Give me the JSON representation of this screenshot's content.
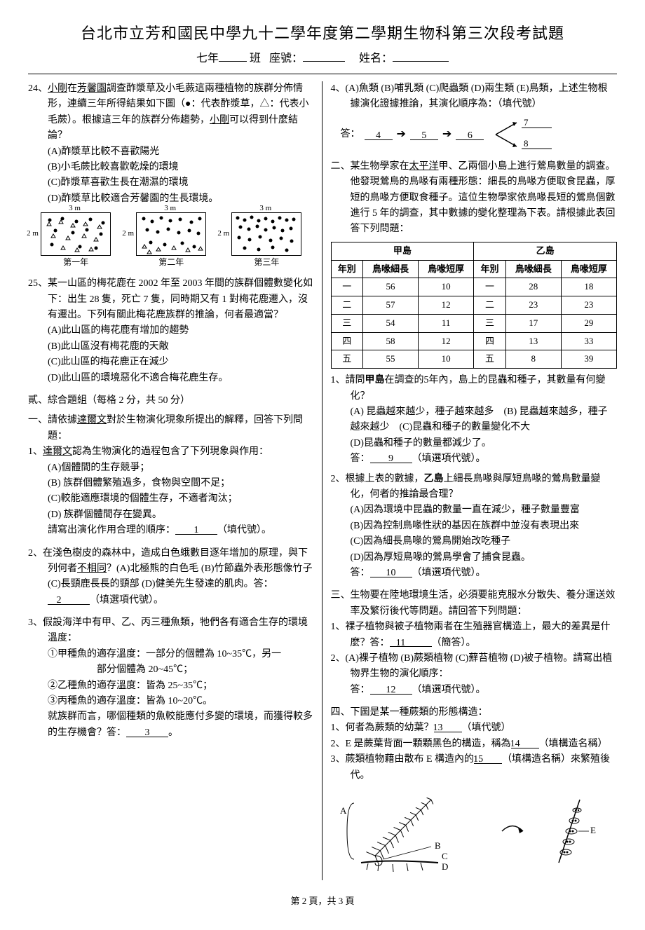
{
  "header": {
    "title": "台北市立芳和國民中學九十二學年度第二學期生物科第三次段考試題",
    "grade": "七年",
    "class_label": "班",
    "seat_label": "座號：",
    "name_label": "姓名："
  },
  "left": {
    "q24": {
      "num": "24、",
      "text": "小剛在芳馨園調查酢漿草及小毛蕨這兩種植物的族群分佈情形，連續三年所得結果如下圖（●：代表酢漿草，△：代表小毛蕨）。根據這三年的族群分佈趨勢，小剛可以得到什麼結論？",
      "underline1": "小剛",
      "underline2": "芳馨園",
      "underline3": "小剛",
      "optA": "(A)酢漿草比較不喜歡陽光",
      "optB": "(B)小毛蕨比較喜歡乾燥的環境",
      "optC": "(C)酢漿草喜歡生長在潮濕的環境",
      "optD": "(D)酢漿草比較適合芳馨園的生長環境。",
      "plot_dim_h": "3 m",
      "plot_dim_v": "2 m",
      "year1": "第一年",
      "year2": "第二年",
      "year3": "第三年"
    },
    "q25": {
      "num": "25、",
      "text": "某一山區的梅花鹿在 2002 年至 2003 年間的族群個體數變化如下：出生 28 隻，死亡 7 隻，同時期又有 1 對梅花鹿遷入，沒有遷出。下列有關此梅花鹿族群的推論，何者最適當？",
      "optA": "(A)此山區的梅花鹿有增加的趨勢",
      "optB": "(B)此山區沒有梅花鹿的天敵",
      "optC": "(C)此山區的梅花鹿正在減少",
      "optD": "(D)此山區的環境惡化不適合梅花鹿生存。"
    },
    "section2": {
      "head": "貳、綜合題組（每格 2 分，共 50 分）",
      "intro_num": "一、",
      "intro": "請依據達爾文對於生物演化現象所提出的解釋，回答下列問題：",
      "underline_darwin": "達爾文",
      "q1": {
        "num": "1、",
        "text": "達爾文認為生物演化的過程包含了下列現象與作用：",
        "underline": "達爾文",
        "optA": "(A)個體間的生存競爭；",
        "optB": "(B) 族群個體繁殖過多，食物與空間不足；",
        "optC": "(C)較能適應環境的個體生存，不適者淘汰；",
        "optD": "(D) 族群個體間存在變異。",
        "tail": "請寫出演化作用合理的順序：",
        "blank": "1",
        "tail2": "（填代號）。"
      },
      "q2": {
        "num": "2、",
        "text_a": "在淺色樹皮的森林中，造成白色蛾數目逐年增加的原理，與下列何者",
        "underline_not": "不相同",
        "text_b": "？(A)北極熊的白色毛 (B)竹節蟲外表形態像竹子 (C)長頸鹿長長的頸部 (D)健美先生發達的肌肉。答：",
        "blank": "2",
        "tail": "（填選項代號）。"
      },
      "q3": {
        "num": "3、",
        "text": "假設海洋中有甲、乙、丙三種魚類，牠們各有適合生存的環境溫度：",
        "line1_a": "①甲種魚的適存溫度：一部分的個體為 10~35℃，另一",
        "line1_b": "部分個體為 20~45℃；",
        "line2": "②乙種魚的適存溫度：皆為 25~35℃；",
        "line3": "③丙種魚的適存溫度：皆為 10~20℃。",
        "tail_a": "就族群而言，哪個種類的魚較能應付多變的環境，而獲得較多的生存機會？答：",
        "blank": "3",
        "tail_b": "。"
      }
    }
  },
  "right": {
    "q4": {
      "num": "4、",
      "text": "(A)魚類 (B)哺乳類 (C)爬蟲類 (D)兩生類 (E)鳥類，上述生物根據演化證據推論，其演化順序為：（填代號）",
      "ans_label": "答：",
      "seq": [
        "4",
        "5",
        "6"
      ],
      "end7": "7",
      "end8": "8"
    },
    "section_bird": {
      "num": "二、",
      "text": "某生物學家在太平洋甲、乙兩個小島上進行鶯鳥數量的調查。他發現鶯鳥的鳥喙有兩種形態：細長的鳥喙方便取食昆蟲，厚短的鳥喙方便取食種子。這位生物學家依鳥喙長短的鶯鳥個數進行 5 年的調查，其中數據的變化整理為下表。請根據此表回答下列問題：",
      "underline_pacific": "太平洋",
      "table": {
        "island_a": "甲島",
        "island_b": "乙島",
        "year_col": "年別",
        "beak_long": "鳥喙細長",
        "beak_short": "鳥喙短厚",
        "rows": [
          {
            "y": "一",
            "a1": "56",
            "a2": "10",
            "b1": "28",
            "b2": "18"
          },
          {
            "y": "二",
            "a1": "57",
            "a2": "12",
            "b1": "23",
            "b2": "23"
          },
          {
            "y": "三",
            "a1": "54",
            "a2": "11",
            "b1": "17",
            "b2": "29"
          },
          {
            "y": "四",
            "a1": "58",
            "a2": "12",
            "b1": "13",
            "b2": "33"
          },
          {
            "y": "五",
            "a1": "55",
            "a2": "10",
            "b1": "8",
            "b2": "39"
          }
        ]
      },
      "q1": {
        "num": "1、",
        "text": "請問甲島在調查的5年內，島上的昆蟲和種子，其數量有何變化？",
        "bold": "甲島",
        "optA": "(A) 昆蟲越來越少，種子越來越多",
        "optB": "(B) 昆蟲越來越多，種子越來越少",
        "optC": "(C)昆蟲和種子的數量變化不大",
        "optD": "(D)昆蟲和種子的數量都減少了。",
        "ans": "答：",
        "blank": "9",
        "tail": "（填選項代號）。"
      },
      "q2": {
        "num": "2、",
        "text": "根據上表的數據，乙島上細長鳥喙與厚短鳥喙的鶯鳥數量變化，何者的推論最合理？",
        "bold": "乙島",
        "optA": "(A)因為環境中昆蟲的數量一直在減少，種子數量豐富",
        "optB": "(B)因為控制鳥喙性狀的基因在族群中並沒有表現出來",
        "optC": "(C)因為細長鳥喙的鶯鳥開始改吃種子",
        "optD": "(D)因為厚短鳥喙的鶯鳥學會了捕食昆蟲。",
        "ans": "答：",
        "blank": "10",
        "tail": "（填選項代號）。"
      }
    },
    "section_land": {
      "num": "三、",
      "text": "生物要在陸地環境生活，必須要能克服水分散失、養分運送效率及繁衍後代等問題。請回答下列問題：",
      "q1": {
        "num": "1、",
        "text": "裸子植物與被子植物兩者在生殖器官構造上，最大的差異是什麼？答：",
        "blank": "11",
        "tail": "（簡答）。"
      },
      "q2": {
        "num": "2、",
        "text": "(A)裸子植物 (B)蕨類植物 (C)蘚苔植物 (D)被子植物。請寫出植物界生物的演化順序：",
        "ans": "答：",
        "blank": "12",
        "tail": "（填選項代號）。"
      }
    },
    "section_fern": {
      "num": "四、",
      "text": "下圖是某一種蕨類的形態構造：",
      "q1": {
        "num": "1、",
        "text": "何者為蕨類的幼葉？",
        "blank": "13",
        "tail": "（填代號）"
      },
      "q2": {
        "num": "2、",
        "text": "E 是蕨葉背面一顆顆黑色的構造，稱為",
        "blank": "14",
        "tail": "（填構造名稱）"
      },
      "q3": {
        "num": "3、",
        "text": "蕨類植物藉由散布 E 構造內的",
        "blank": "15",
        "tail": "（填構造名稱）來繁殖後代。"
      },
      "labels": {
        "A": "A",
        "B": "B",
        "C": "C",
        "D": "D",
        "E": "E"
      }
    }
  },
  "footer": "第 2 頁，共 3 頁"
}
